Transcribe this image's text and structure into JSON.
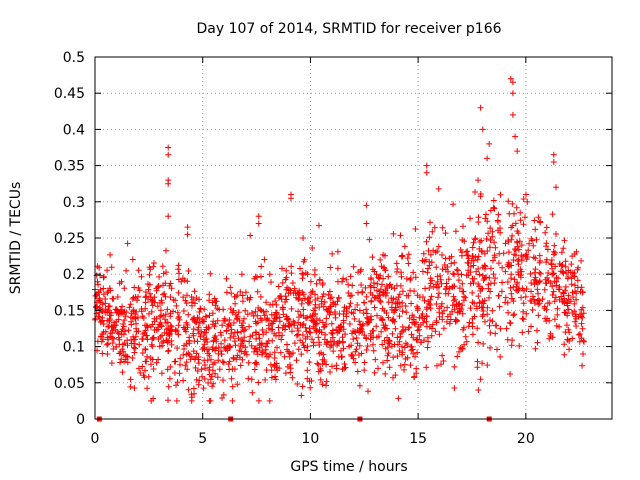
{
  "chart_data": {
    "type": "scatter",
    "title": "Day 107 of 2014, SRMTID for receiver p166",
    "xlabel": "GPS time / hours",
    "ylabel": "SRMTID / TECUs",
    "xlim": [
      0,
      24
    ],
    "ylim": [
      0,
      0.5
    ],
    "x_ticks": [
      0,
      5,
      10,
      15,
      20
    ],
    "x_tick_labels": [
      "0",
      "5",
      "10",
      "15",
      "20"
    ],
    "y_ticks": [
      0,
      0.05,
      0.1,
      0.15,
      0.2,
      0.25,
      0.3,
      0.35,
      0.4,
      0.45,
      0.5
    ],
    "y_tick_labels": [
      "0",
      "0.05",
      "0.1",
      "0.15",
      "0.2",
      "0.25",
      "0.3",
      "0.35",
      "0.4",
      "0.45",
      "0.5"
    ],
    "grid": true,
    "marker": "+",
    "series_color": "#ff0000",
    "baseline_markers_x": [
      0.2,
      6.3,
      12.3,
      18.3
    ],
    "envelope_note": "Dense scatter of ~2000 points from 0 to 22.7 h; typical values 0.05-0.25 TECU with spikes up to 0.47 near 19.4 h.",
    "trend": [
      {
        "x": 0,
        "center": 0.15,
        "spread": 0.05
      },
      {
        "x": 1,
        "center": 0.13,
        "spread": 0.05
      },
      {
        "x": 2,
        "center": 0.12,
        "spread": 0.06
      },
      {
        "x": 3,
        "center": 0.13,
        "spread": 0.07
      },
      {
        "x": 4,
        "center": 0.12,
        "spread": 0.07
      },
      {
        "x": 5,
        "center": 0.1,
        "spread": 0.06
      },
      {
        "x": 6,
        "center": 0.11,
        "spread": 0.06
      },
      {
        "x": 7,
        "center": 0.12,
        "spread": 0.07
      },
      {
        "x": 8,
        "center": 0.12,
        "spread": 0.07
      },
      {
        "x": 9,
        "center": 0.13,
        "spread": 0.07
      },
      {
        "x": 10,
        "center": 0.14,
        "spread": 0.07
      },
      {
        "x": 11,
        "center": 0.13,
        "spread": 0.06
      },
      {
        "x": 12,
        "center": 0.13,
        "spread": 0.06
      },
      {
        "x": 13,
        "center": 0.15,
        "spread": 0.07
      },
      {
        "x": 14,
        "center": 0.13,
        "spread": 0.07
      },
      {
        "x": 15,
        "center": 0.15,
        "spread": 0.08
      },
      {
        "x": 16,
        "center": 0.17,
        "spread": 0.08
      },
      {
        "x": 17,
        "center": 0.17,
        "spread": 0.08
      },
      {
        "x": 18,
        "center": 0.18,
        "spread": 0.09
      },
      {
        "x": 19,
        "center": 0.2,
        "spread": 0.09
      },
      {
        "x": 20,
        "center": 0.21,
        "spread": 0.08
      },
      {
        "x": 21,
        "center": 0.19,
        "spread": 0.08
      },
      {
        "x": 22,
        "center": 0.16,
        "spread": 0.06
      },
      {
        "x": 22.7,
        "center": 0.15,
        "spread": 0.05
      }
    ],
    "highlight_points": [
      {
        "x": 3.4,
        "y": 0.375
      },
      {
        "x": 3.4,
        "y": 0.365
      },
      {
        "x": 3.4,
        "y": 0.33
      },
      {
        "x": 3.4,
        "y": 0.325
      },
      {
        "x": 3.4,
        "y": 0.28
      },
      {
        "x": 4.3,
        "y": 0.265
      },
      {
        "x": 4.3,
        "y": 0.255
      },
      {
        "x": 7.6,
        "y": 0.28
      },
      {
        "x": 7.6,
        "y": 0.27
      },
      {
        "x": 9.1,
        "y": 0.31
      },
      {
        "x": 9.1,
        "y": 0.305
      },
      {
        "x": 12.6,
        "y": 0.295
      },
      {
        "x": 12.6,
        "y": 0.27
      },
      {
        "x": 15.4,
        "y": 0.35
      },
      {
        "x": 15.4,
        "y": 0.34
      },
      {
        "x": 17.9,
        "y": 0.43
      },
      {
        "x": 18.0,
        "y": 0.4
      },
      {
        "x": 18.2,
        "y": 0.36
      },
      {
        "x": 18.3,
        "y": 0.38
      },
      {
        "x": 19.3,
        "y": 0.47
      },
      {
        "x": 19.4,
        "y": 0.465
      },
      {
        "x": 19.4,
        "y": 0.45
      },
      {
        "x": 19.4,
        "y": 0.42
      },
      {
        "x": 19.5,
        "y": 0.39
      },
      {
        "x": 19.6,
        "y": 0.37
      },
      {
        "x": 21.3,
        "y": 0.365
      },
      {
        "x": 21.3,
        "y": 0.355
      },
      {
        "x": 21.4,
        "y": 0.32
      },
      {
        "x": 17.8,
        "y": 0.04
      },
      {
        "x": 17.9,
        "y": 0.055
      },
      {
        "x": 4.5,
        "y": 0.03
      },
      {
        "x": 4.6,
        "y": 0.035
      }
    ]
  }
}
